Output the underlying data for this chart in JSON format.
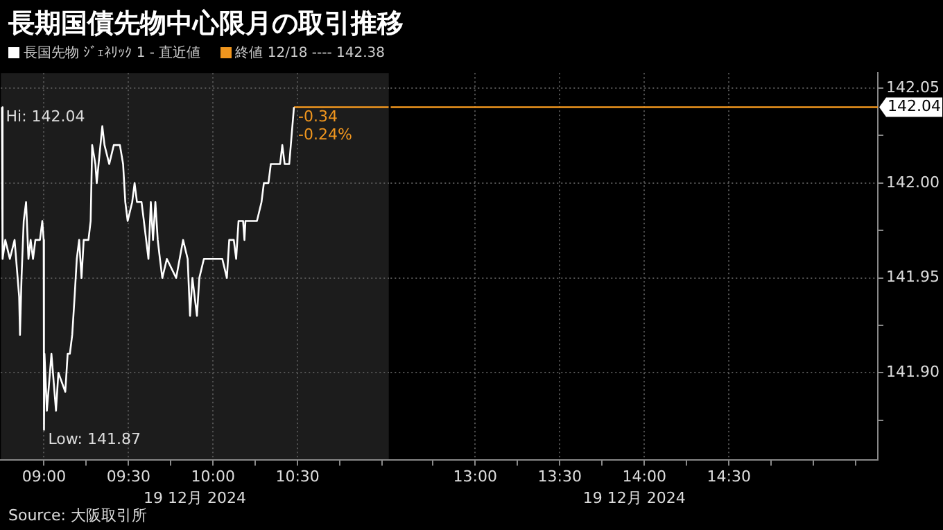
{
  "chart_data": [
    {
      "type": "line",
      "title": "長期国債先物中心限月の取引推移",
      "xlabel": "19 12月 2024",
      "legend": "top left",
      "series": [
        {
          "name": "長国先物 ｼﾞｪﾈﾘｯｸ 1 - 直近値",
          "color": "#ffffff",
          "x": [
            8.75,
            8.755,
            8.771,
            8.798,
            8.826,
            8.853,
            8.858,
            8.867,
            8.88,
            8.894,
            8.908,
            8.921,
            8.935,
            8.949,
            8.976,
            8.99,
            8.998,
            9.0,
            9.003,
            9.017,
            9.044,
            9.071,
            9.085,
            9.126,
            9.14,
            9.153,
            9.167,
            9.181,
            9.194,
            9.208,
            9.222,
            9.235,
            9.263,
            9.276,
            9.285,
            9.304,
            9.312,
            9.323,
            9.345,
            9.358,
            9.386,
            9.413,
            9.449,
            9.468,
            9.481,
            9.495,
            9.522,
            9.536,
            9.55,
            9.577,
            9.591,
            9.618,
            9.632,
            9.645,
            9.659,
            9.673,
            9.686,
            9.7,
            9.727,
            9.782,
            9.823,
            9.85,
            9.864,
            9.878,
            9.905,
            9.919,
            9.946,
            10.0,
            10.055,
            10.082,
            10.096,
            10.123,
            10.137,
            10.151,
            10.178,
            10.186,
            10.192,
            10.26,
            10.287,
            10.301,
            10.328,
            10.342,
            10.397,
            10.41,
            10.424,
            10.451,
            10.479
          ],
          "values": [
            142.04,
            141.96,
            141.97,
            141.96,
            141.97,
            141.94,
            141.92,
            141.95,
            141.98,
            141.99,
            141.96,
            141.97,
            141.96,
            141.97,
            141.97,
            141.98,
            141.97,
            141.87,
            141.91,
            141.88,
            141.91,
            141.88,
            141.9,
            141.89,
            141.91,
            141.91,
            141.92,
            141.94,
            141.96,
            141.97,
            141.95,
            141.97,
            141.97,
            141.98,
            142.02,
            142.01,
            142.0,
            142.01,
            142.03,
            142.02,
            142.01,
            142.02,
            142.02,
            142.01,
            141.99,
            141.98,
            141.99,
            142.0,
            141.99,
            141.99,
            141.98,
            141.96,
            141.99,
            141.97,
            141.99,
            141.97,
            141.96,
            141.95,
            141.96,
            141.95,
            141.97,
            141.96,
            141.93,
            141.95,
            141.93,
            141.95,
            141.96,
            141.96,
            141.96,
            141.95,
            141.97,
            141.97,
            141.96,
            141.98,
            141.98,
            141.97,
            141.98,
            141.98,
            141.99,
            142.0,
            142.0,
            142.01,
            142.01,
            142.02,
            142.01,
            142.01,
            142.04
          ]
        },
        {
          "name": "終値 12/18 ---- 142.38",
          "color": "#f0961e",
          "x": [
            10.479,
            11.04
          ],
          "values": [
            142.04,
            142.04
          ]
        }
      ],
      "xlim": [
        8.745,
        11.04
      ],
      "xticks": [
        {
          "value": 9,
          "label": "09:00"
        },
        {
          "value": 9.25,
          "label": null
        },
        {
          "value": 9.5,
          "label": "09:30"
        },
        {
          "value": 9.75,
          "label": null
        },
        {
          "value": 10,
          "label": "10:00"
        },
        {
          "value": 10.25,
          "label": null
        },
        {
          "value": 10.5,
          "label": "10:30"
        },
        {
          "value": 10.75,
          "label": null
        },
        {
          "value": 11,
          "label": null
        }
      ],
      "ylim": [
        141.854,
        142.058
      ],
      "yticks": [
        142.05,
        142,
        141.95,
        141.9
      ],
      "tick_labels": "x",
      "grid": true,
      "marker": "none",
      "line_style": "solid",
      "annotations": [
        {
          "text": "Hi: 142.04",
          "x": 8.75,
          "y": 142.04
        },
        {
          "text": "Low: 141.87",
          "x": 9.0,
          "y": 141.87
        },
        {
          "text": "-0.34",
          "x": 10.479,
          "y": 142.04
        },
        {
          "text": "-0.24%",
          "x": 10.479,
          "y": 142.04
        },
        "Source: 大阪取引所"
      ]
    },
    {
      "type": "line",
      "xlabel": "19 12月 2024",
      "series": [
        {
          "color": "#f0961e",
          "x": [
            12.5,
            15.38
          ],
          "values": [
            142.04,
            142.04
          ]
        }
      ],
      "xlim": [
        12.5,
        15.38
      ],
      "xticks": [
        {
          "value": 12.75,
          "label": null
        },
        {
          "value": 13,
          "label": "13:00"
        },
        {
          "value": 13.25,
          "label": null
        },
        {
          "value": 13.5,
          "label": "13:30"
        },
        {
          "value": 13.75,
          "label": null
        },
        {
          "value": 14,
          "label": "14:00"
        },
        {
          "value": 14.25,
          "label": null
        },
        {
          "value": 14.5,
          "label": "14:30"
        },
        {
          "value": 14.75,
          "label": null
        },
        {
          "value": 15,
          "label": null
        },
        {
          "value": 15.25,
          "label": null
        }
      ],
      "ylim": [
        141.854,
        142.058
      ],
      "yticks": [
        142.05,
        {
          "value": 142.025,
          "label": null
        },
        {
          "value": 142,
          "label": "142.00"
        },
        {
          "value": 141.975,
          "label": null
        },
        141.95,
        {
          "value": 141.925,
          "label": null
        },
        {
          "value": 141.9,
          "label": "141.90"
        },
        {
          "value": 141.875,
          "label": null
        }
      ],
      "grid": true,
      "marker": "none",
      "annotations": [
        {
          "text": "142.04",
          "x": 15.38,
          "y": 142.04
        }
      ]
    }
  ]
}
